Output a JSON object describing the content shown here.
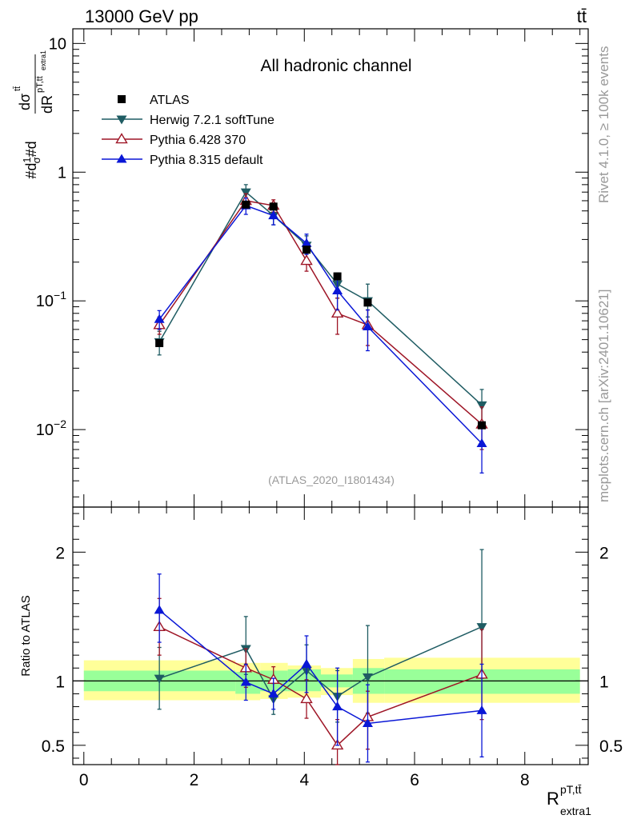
{
  "header": {
    "process": "13000 GeV pp",
    "final_state": "tt̄"
  },
  "side_labels": {
    "rivet": "Rivet 4.1.0, ≥ 100k events",
    "mcplots": "mcplots.cern.ch [arXiv:2401.10621]"
  },
  "chart_data": [
    {
      "panel": "main",
      "type": "scatter",
      "title": "All hadronic channel",
      "analysis_id": "(ATLAS_2020_I1801434)",
      "ylabel": "#d1/σ#d dσ^tt̄/dR^pT,tt̄_extra1",
      "yscale": "log",
      "ylim": [
        0.0025,
        13
      ],
      "xlim": [
        -0.2,
        9.15
      ],
      "yticks": [
        {
          "value": 10,
          "label": "10"
        },
        {
          "value": 1,
          "label": "1"
        },
        {
          "value": 0.1,
          "label": "10−1"
        },
        {
          "value": 0.01,
          "label": "10−2"
        }
      ],
      "legend_location": "upper-left",
      "legend": [
        {
          "name": "ATLAS",
          "color": "#000000",
          "marker": "square"
        },
        {
          "name": "Herwig 7.2.1 softTune",
          "color": "#1f5c63",
          "marker": "triangle-down"
        },
        {
          "name": "Pythia 6.428 370",
          "color": "#9e1526",
          "marker": "triangle-up-open"
        },
        {
          "name": "Pythia 8.315 default",
          "color": "#0a17d6",
          "marker": "triangle-up"
        }
      ],
      "series": [
        {
          "name": "ATLAS",
          "x": [
            1.37,
            2.94,
            3.44,
            4.04,
            4.6,
            5.15,
            7.22
          ],
          "y": [
            0.047,
            0.56,
            0.54,
            0.25,
            0.155,
            0.097,
            0.0108
          ]
        },
        {
          "name": "Herwig 7.2.1 softTune",
          "x": [
            1.37,
            2.94,
            3.44,
            4.04,
            4.6,
            5.15,
            7.22
          ],
          "y": [
            0.048,
            0.7,
            0.46,
            0.27,
            0.135,
            0.1,
            0.0155
          ],
          "err_lo": [
            0.01,
            0.09,
            0.07,
            0.04,
            0.03,
            0.025,
            0.005
          ],
          "err_hi": [
            0.01,
            0.1,
            0.07,
            0.05,
            0.03,
            0.035,
            0.005
          ]
        },
        {
          "name": "Pythia 6.428 370",
          "x": [
            1.37,
            2.94,
            3.44,
            4.04,
            4.6,
            5.15,
            7.22
          ],
          "y": [
            0.065,
            0.6,
            0.55,
            0.205,
            0.08,
            0.065,
            0.011
          ],
          "err_lo": [
            0.01,
            0.08,
            0.06,
            0.035,
            0.025,
            0.02,
            0.004
          ],
          "err_hi": [
            0.01,
            0.08,
            0.06,
            0.035,
            0.025,
            0.02,
            0.004
          ]
        },
        {
          "name": "Pythia 8.315 default",
          "x": [
            1.37,
            2.94,
            3.44,
            4.04,
            4.6,
            5.15,
            7.22
          ],
          "y": [
            0.072,
            0.55,
            0.46,
            0.28,
            0.12,
            0.063,
            0.0078
          ],
          "err_lo": [
            0.012,
            0.08,
            0.07,
            0.05,
            0.035,
            0.022,
            0.0032
          ],
          "err_hi": [
            0.012,
            0.08,
            0.07,
            0.05,
            0.035,
            0.022,
            0.0032
          ]
        }
      ]
    },
    {
      "panel": "ratio",
      "type": "scatter",
      "ylabel": "Ratio to ATLAS",
      "xlabel": "R^pT,tt̄_extra1",
      "xlim": [
        -0.2,
        9.15
      ],
      "ylim": [
        0.35,
        2.35
      ],
      "xticks": [
        0,
        2,
        4,
        6,
        8
      ],
      "yticks": [
        {
          "value": 2,
          "label": "2"
        },
        {
          "value": 1,
          "label": "1"
        },
        {
          "value": 0.5,
          "label": "0.5"
        }
      ],
      "bands": [
        {
          "x_lo": 0.0,
          "x_hi": 2.75,
          "stat_lo": 0.92,
          "stat_hi": 1.08,
          "tot_lo": 0.85,
          "tot_hi": 1.16
        },
        {
          "x_lo": 2.75,
          "x_hi": 3.2,
          "stat_lo": 0.9,
          "stat_hi": 1.07,
          "tot_lo": 0.85,
          "tot_hi": 1.14
        },
        {
          "x_lo": 3.2,
          "x_hi": 3.7,
          "stat_lo": 0.92,
          "stat_hi": 1.08,
          "tot_lo": 0.86,
          "tot_hi": 1.14
        },
        {
          "x_lo": 3.7,
          "x_hi": 4.3,
          "stat_lo": 0.92,
          "stat_hi": 1.09,
          "tot_lo": 0.87,
          "tot_hi": 1.12
        },
        {
          "x_lo": 4.3,
          "x_hi": 4.88,
          "stat_lo": 0.95,
          "stat_hi": 1.05,
          "tot_lo": 0.89,
          "tot_hi": 1.1
        },
        {
          "x_lo": 4.88,
          "x_hi": 5.45,
          "stat_lo": 0.9,
          "stat_hi": 1.1,
          "tot_lo": 0.83,
          "tot_hi": 1.17
        },
        {
          "x_lo": 5.45,
          "x_hi": 9.0,
          "stat_lo": 0.9,
          "stat_hi": 1.09,
          "tot_lo": 0.83,
          "tot_hi": 1.18
        }
      ],
      "series": [
        {
          "name": "Herwig 7.2.1 softTune",
          "x": [
            1.37,
            2.94,
            3.44,
            4.04,
            4.6,
            5.15,
            7.22
          ],
          "y": [
            1.02,
            1.25,
            0.86,
            1.08,
            0.88,
            1.03,
            1.42
          ],
          "err_lo": [
            0.24,
            0.2,
            0.12,
            0.2,
            0.2,
            0.28,
            0.4
          ],
          "err_hi": [
            0.24,
            0.25,
            0.12,
            0.2,
            0.2,
            0.4,
            0.6
          ]
        },
        {
          "name": "Pythia 6.428 370",
          "x": [
            1.37,
            2.94,
            3.44,
            4.04,
            4.6,
            5.15,
            7.22
          ],
          "y": [
            1.42,
            1.1,
            1.01,
            0.86,
            0.5,
            0.72,
            1.05
          ],
          "err_lo": [
            0.22,
            0.15,
            0.12,
            0.15,
            0.2,
            0.25,
            0.35
          ],
          "err_hi": [
            0.22,
            0.15,
            0.1,
            0.15,
            0.2,
            0.2,
            0.35
          ]
        },
        {
          "name": "Pythia 8.315 default",
          "x": [
            1.37,
            2.94,
            3.44,
            4.04,
            4.6,
            5.15,
            7.22
          ],
          "y": [
            1.55,
            0.99,
            0.9,
            1.13,
            0.8,
            0.67,
            0.77
          ],
          "err_lo": [
            0.25,
            0.14,
            0.12,
            0.22,
            0.3,
            0.3,
            0.36
          ],
          "err_hi": [
            0.28,
            0.14,
            0.12,
            0.22,
            0.3,
            0.3,
            0.36
          ]
        }
      ]
    }
  ]
}
